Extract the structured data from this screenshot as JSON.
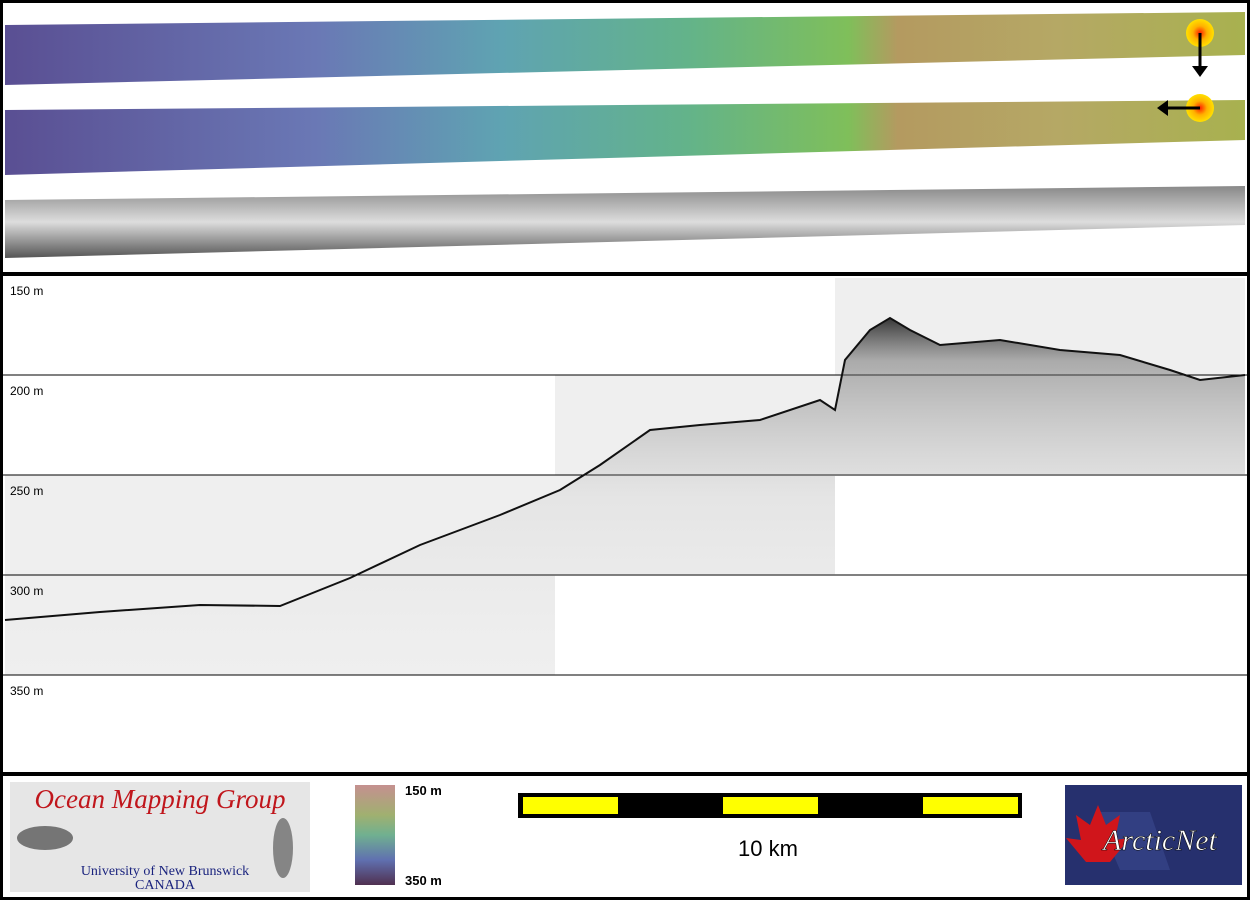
{
  "profile": {
    "depth_labels": [
      "150 m",
      "200 m",
      "250 m",
      "300 m",
      "350 m"
    ]
  },
  "footer": {
    "logo": {
      "title": "Ocean Mapping Group",
      "university": "University of New Brunswick",
      "country": "CANADA"
    },
    "colorbar": {
      "top_label": "150 m",
      "bottom_label": "350 m"
    },
    "scale_bar": {
      "label": "10 km"
    },
    "partner_logo": {
      "name": "ArcticNet"
    }
  }
}
